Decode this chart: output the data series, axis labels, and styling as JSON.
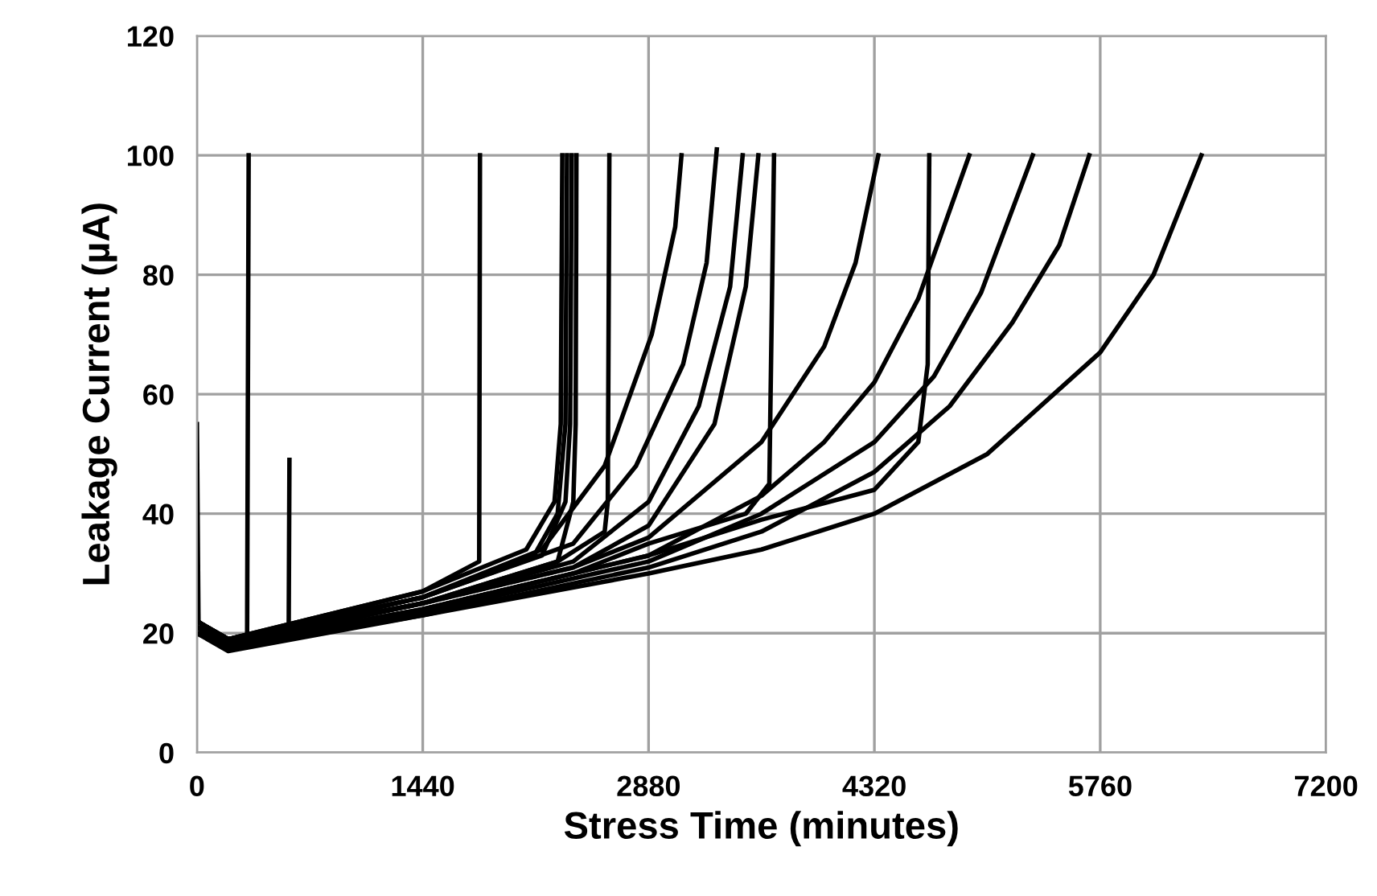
{
  "chart_data": {
    "type": "line",
    "xlabel": "Stress Time (minutes)",
    "ylabel": "Leakage Current (µA)",
    "xlim": [
      0,
      7200
    ],
    "ylim": [
      0,
      120
    ],
    "xticks": [
      0,
      1440,
      2880,
      4320,
      5760,
      7200
    ],
    "yticks": [
      0,
      20,
      40,
      60,
      80,
      100,
      120
    ],
    "grid": true,
    "legend": false,
    "marker": "none",
    "line_style": "solid",
    "series": [
      {
        "color": "#000000",
        "x": [
          0,
          10,
          150
        ],
        "values": [
          55,
          22,
          18
        ]
      },
      {
        "color": "#000000",
        "x": [
          0,
          150,
          320,
          330
        ],
        "values": [
          21,
          18,
          19,
          100
        ]
      },
      {
        "color": "#000000",
        "x": [
          0,
          200,
          585,
          590
        ],
        "values": [
          20,
          18,
          19,
          49
        ]
      },
      {
        "color": "#000000",
        "x": [
          0,
          200,
          1440,
          1800,
          1805
        ],
        "values": [
          22,
          19,
          27,
          32,
          100
        ]
      },
      {
        "color": "#000000",
        "x": [
          0,
          200,
          1440,
          2100,
          2280,
          2320,
          2330
        ],
        "values": [
          22,
          19,
          27,
          34,
          42,
          55,
          100
        ]
      },
      {
        "color": "#000000",
        "x": [
          0,
          200,
          1440,
          2150,
          2300,
          2350,
          2360
        ],
        "values": [
          22,
          19,
          26,
          33,
          40,
          55,
          100
        ]
      },
      {
        "color": "#000000",
        "x": [
          0,
          200,
          1440,
          2200,
          2350,
          2380,
          2390
        ],
        "values": [
          21,
          19,
          26,
          33,
          42,
          55,
          100
        ]
      },
      {
        "color": "#000000",
        "x": [
          0,
          200,
          1440,
          2300,
          2400,
          2415,
          2420
        ],
        "values": [
          21,
          18.5,
          25,
          32,
          42,
          55,
          100
        ]
      },
      {
        "color": "#000000",
        "x": [
          0,
          200,
          1440,
          2300,
          2600,
          2620,
          2630
        ],
        "values": [
          22,
          19,
          25,
          32,
          37,
          42,
          100
        ]
      },
      {
        "color": "#000000",
        "x": [
          0,
          200,
          1440,
          2200,
          2600,
          2900,
          3050,
          3090
        ],
        "values": [
          22,
          19,
          26,
          34,
          48,
          70,
          88,
          100
        ]
      },
      {
        "color": "#000000",
        "x": [
          0,
          200,
          1440,
          2400,
          2800,
          3100,
          3250,
          3315
        ],
        "values": [
          22,
          18.5,
          26,
          35,
          48,
          65,
          82,
          101
        ]
      },
      {
        "color": "#000000",
        "x": [
          0,
          200,
          1440,
          2400,
          2880,
          3200,
          3400,
          3480
        ],
        "values": [
          21,
          18.5,
          25,
          32,
          42,
          58,
          78,
          100
        ]
      },
      {
        "color": "#000000",
        "x": [
          0,
          200,
          1440,
          2400,
          2880,
          3300,
          3500,
          3580
        ],
        "values": [
          21,
          18.5,
          25,
          31,
          38,
          55,
          78,
          100
        ]
      },
      {
        "color": "#000000",
        "x": [
          0,
          200,
          1440,
          2400,
          2880,
          3500,
          3650,
          3680
        ],
        "values": [
          21,
          18,
          24,
          30,
          35,
          40,
          45,
          100
        ]
      },
      {
        "color": "#000000",
        "x": [
          0,
          200,
          1440,
          2400,
          2880,
          3600,
          4000,
          4200,
          4345
        ],
        "values": [
          21,
          18,
          25,
          31,
          36,
          52,
          68,
          82,
          100
        ]
      },
      {
        "color": "#000000",
        "x": [
          0,
          200,
          1440,
          2880,
          3600,
          4320,
          4600,
          4660,
          4670
        ],
        "values": [
          21,
          18,
          24,
          33,
          39,
          44,
          52,
          65,
          100
        ]
      },
      {
        "color": "#000000",
        "x": [
          0,
          200,
          1440,
          2880,
          3600,
          4000,
          4320,
          4600,
          4925
        ],
        "values": [
          21,
          18,
          24,
          33,
          43,
          52,
          62,
          76,
          100
        ]
      },
      {
        "color": "#000000",
        "x": [
          0,
          200,
          1440,
          2880,
          3600,
          4320,
          4700,
          5000,
          5330
        ],
        "values": [
          20,
          17.5,
          23.5,
          32,
          40,
          52,
          63,
          77,
          100
        ]
      },
      {
        "color": "#000000",
        "x": [
          0,
          200,
          1440,
          2880,
          3600,
          4320,
          4800,
          5200,
          5500,
          5690
        ],
        "values": [
          20,
          17.5,
          23,
          31,
          37,
          47,
          58,
          72,
          85,
          100
        ]
      },
      {
        "color": "#000000",
        "x": [
          0,
          200,
          1440,
          2880,
          3600,
          4320,
          5040,
          5760,
          6100,
          6405
        ],
        "values": [
          20,
          17,
          23,
          30,
          34,
          40,
          50,
          67,
          80,
          100
        ]
      }
    ]
  }
}
